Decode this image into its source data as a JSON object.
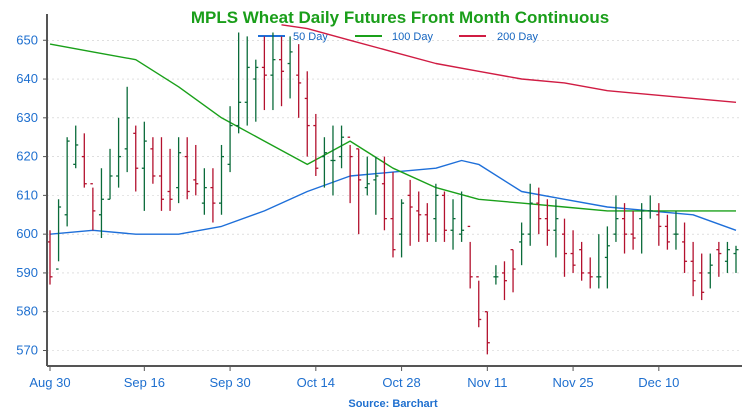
{
  "chart_data": {
    "type": "ohlc",
    "title": "MPLS Wheat Daily Futures Front Month Continuous",
    "source": "Source: Barchart",
    "ylim": [
      566,
      656
    ],
    "y_ticks": [
      570,
      580,
      590,
      600,
      610,
      620,
      630,
      640,
      650
    ],
    "x_ticks": [
      "Aug 30",
      "Sep 16",
      "Sep 30",
      "Oct 14",
      "Oct 28",
      "Nov 11",
      "Nov 25",
      "Dec 10"
    ],
    "x_tick_index": [
      0,
      11,
      21,
      31,
      41,
      51,
      61,
      71
    ],
    "num_bars": 81,
    "colors": {
      "up": "#0a6b3a",
      "down": "#b3112e",
      "ma50": "#1e6fd9",
      "ma100": "#1aa01a",
      "ma200": "#d01c43",
      "axis": "#555555",
      "grid": "#cccccc"
    },
    "legend": [
      {
        "name": "50 Day",
        "color": "#1e6fd9"
      },
      {
        "name": "100 Day",
        "color": "#1aa01a"
      },
      {
        "name": "200 Day",
        "color": "#d01c43"
      }
    ],
    "bars": [
      [
        598,
        601,
        587,
        589
      ],
      [
        591,
        609,
        593,
        607
      ],
      [
        605,
        625,
        602,
        624
      ],
      [
        618,
        628,
        617,
        623
      ],
      [
        620,
        626,
        612,
        613
      ],
      [
        613,
        612,
        601,
        606
      ],
      [
        605,
        617,
        599,
        609
      ],
      [
        609,
        622,
        609,
        615
      ],
      [
        615,
        630,
        612,
        620
      ],
      [
        622,
        638,
        616,
        630
      ],
      [
        626,
        628,
        611,
        617
      ],
      [
        617,
        629,
        606,
        624
      ],
      [
        622,
        625,
        613,
        615
      ],
      [
        615,
        625,
        606,
        609
      ],
      [
        611,
        622,
        606,
        609
      ],
      [
        612,
        625,
        608,
        621
      ],
      [
        620,
        625,
        609,
        611
      ],
      [
        614,
        623,
        610,
        613
      ],
      [
        608,
        617,
        605,
        612
      ],
      [
        612,
        617,
        603,
        608
      ],
      [
        608,
        623,
        605,
        620
      ],
      [
        618,
        633,
        616,
        628
      ],
      [
        628,
        652,
        626,
        634
      ],
      [
        634,
        651,
        628,
        643
      ],
      [
        640,
        645,
        629,
        643
      ],
      [
        643,
        651,
        632,
        641
      ],
      [
        641,
        652,
        632,
        645
      ],
      [
        645,
        651,
        633,
        642
      ],
      [
        644,
        651,
        635,
        647
      ],
      [
        641,
        649,
        630,
        639
      ],
      [
        635,
        642,
        620,
        628
      ],
      [
        628,
        631,
        615,
        617
      ],
      [
        620,
        625,
        612,
        621
      ],
      [
        619,
        628,
        610,
        619
      ],
      [
        620,
        628,
        617,
        625
      ],
      [
        625,
        623,
        608,
        620
      ],
      [
        622,
        622,
        600,
        614
      ],
      [
        612,
        620,
        610,
        613
      ],
      [
        614,
        620,
        605,
        615
      ],
      [
        613,
        620,
        601,
        604
      ],
      [
        604,
        616,
        594,
        596
      ],
      [
        600,
        609,
        594,
        608
      ],
      [
        610,
        614,
        597,
        607
      ],
      [
        606,
        611,
        598,
        605
      ],
      [
        605,
        608,
        598,
        600
      ],
      [
        604,
        613,
        598,
        610
      ],
      [
        610,
        611,
        598,
        601
      ],
      [
        601,
        609,
        596,
        604
      ],
      [
        600,
        611,
        598,
        601
      ],
      [
        602,
        598,
        586,
        589
      ],
      [
        589,
        588,
        576,
        578
      ],
      [
        580,
        580,
        569,
        572
      ],
      [
        589,
        592,
        587,
        589
      ],
      [
        590,
        593,
        583,
        588
      ],
      [
        596,
        596,
        585,
        591
      ],
      [
        598,
        603,
        592,
        600
      ],
      [
        600,
        613,
        597,
        608
      ],
      [
        608,
        612,
        600,
        604
      ],
      [
        604,
        609,
        597,
        601
      ],
      [
        601,
        609,
        594,
        604
      ],
      [
        600,
        604,
        589,
        595
      ],
      [
        595,
        601,
        590,
        592
      ],
      [
        596,
        598,
        588,
        590
      ],
      [
        590,
        594,
        586,
        589
      ],
      [
        589,
        600,
        586,
        589
      ],
      [
        594,
        602,
        586,
        597
      ],
      [
        600,
        610,
        598,
        604
      ],
      [
        604,
        608,
        595,
        600
      ],
      [
        600,
        606,
        596,
        599
      ],
      [
        604,
        608,
        595,
        606
      ],
      [
        606,
        610,
        604,
        606
      ],
      [
        605,
        608,
        597,
        602
      ],
      [
        602,
        605,
        596,
        598
      ],
      [
        600,
        606,
        596,
        600
      ],
      [
        598,
        603,
        590,
        593
      ],
      [
        593,
        598,
        584,
        588
      ],
      [
        590,
        595,
        583,
        585
      ],
      [
        590,
        595,
        586,
        592
      ],
      [
        596,
        598,
        589,
        595
      ],
      [
        593,
        598,
        590,
        596
      ],
      [
        595,
        597,
        590,
        596
      ]
    ],
    "series": [
      {
        "name": "50 Day",
        "x": [
          0,
          5,
          10,
          15,
          20,
          25,
          30,
          35,
          40,
          45,
          48,
          50,
          55,
          60,
          65,
          70,
          75,
          80
        ],
        "values": [
          600,
          601,
          600,
          600,
          602,
          606,
          611,
          615,
          616,
          617,
          619,
          618,
          611,
          609,
          607,
          606,
          605,
          601
        ]
      },
      {
        "name": "100 Day",
        "x": [
          0,
          5,
          10,
          15,
          20,
          25,
          30,
          35,
          40,
          45,
          50,
          55,
          60,
          65,
          70,
          75,
          80
        ],
        "values": [
          649,
          647,
          645,
          638,
          630,
          624,
          618,
          624,
          617,
          612,
          609,
          608,
          607,
          606,
          606,
          606,
          606
        ]
      },
      {
        "name": "200 Day",
        "x": [
          27,
          30,
          35,
          40,
          45,
          50,
          55,
          60,
          65,
          70,
          75,
          80
        ],
        "values": [
          654,
          653,
          650,
          647,
          644,
          642,
          640,
          639,
          637,
          636,
          635,
          634
        ]
      }
    ]
  }
}
